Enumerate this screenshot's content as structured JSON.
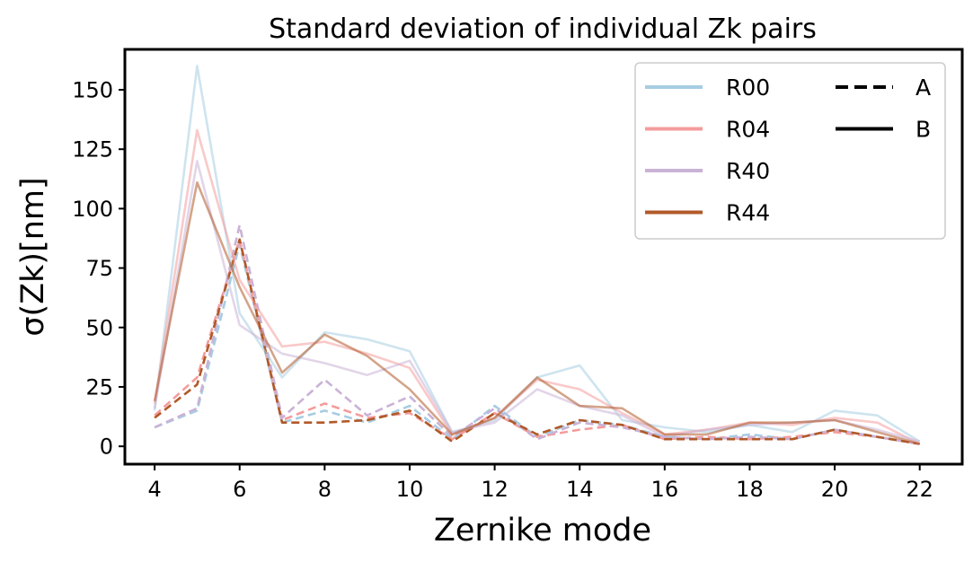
{
  "chart_data": {
    "type": "line",
    "title": "Standard deviation of individual Zk pairs",
    "xlabel": "Zernike mode",
    "ylabel": "σ(Zk)[nm]",
    "xlim": [
      3.3,
      23.0
    ],
    "ylim": [
      -7.5,
      167
    ],
    "xticks": [
      4,
      6,
      8,
      10,
      12,
      14,
      16,
      18,
      20,
      22
    ],
    "yticks": [
      0,
      25,
      50,
      75,
      100,
      125,
      150
    ],
    "grid": false,
    "legend_position": "top-right",
    "x": [
      4,
      5,
      6,
      7,
      8,
      9,
      10,
      11,
      12,
      13,
      14,
      15,
      16,
      17,
      18,
      19,
      20,
      21,
      22
    ],
    "series": [
      {
        "name": "R00",
        "color": "#a6cde2",
        "variant": "A",
        "linestyle": "dashed",
        "values": [
          8,
          15,
          85,
          10,
          15,
          10,
          17,
          3,
          17,
          4,
          11,
          9,
          4,
          3,
          5,
          3,
          7,
          4,
          1
        ]
      },
      {
        "name": "R04",
        "color": "#f49c9c",
        "variant": "A",
        "linestyle": "dashed",
        "values": [
          13,
          29,
          87,
          11,
          18,
          12,
          14,
          3,
          14,
          4,
          7,
          9,
          3,
          4,
          3,
          4,
          6,
          4,
          1
        ]
      },
      {
        "name": "R40",
        "color": "#cab2d6",
        "variant": "A",
        "linestyle": "dashed",
        "values": [
          8,
          16,
          93,
          12,
          28,
          13,
          21,
          4,
          16,
          3,
          10,
          8,
          4,
          3,
          4,
          3,
          7,
          4,
          1
        ]
      },
      {
        "name": "R44",
        "color": "#b15928",
        "variant": "A",
        "linestyle": "dashed",
        "values": [
          12,
          26,
          87,
          10,
          10,
          11,
          15,
          2,
          14,
          5,
          11,
          9,
          3,
          3,
          3,
          3,
          7,
          4,
          1
        ]
      },
      {
        "name": "R00",
        "color": "#a6cde2",
        "variant": "B",
        "linestyle": "solid",
        "values": [
          15,
          160,
          56,
          29,
          48,
          45,
          40,
          6,
          11,
          29,
          34,
          11,
          8,
          6,
          9,
          6,
          15,
          13,
          2
        ]
      },
      {
        "name": "R04",
        "color": "#f49c9c",
        "variant": "B",
        "linestyle": "solid",
        "values": [
          18,
          133,
          70,
          42,
          44,
          39,
          33,
          5,
          12,
          28,
          24,
          14,
          5,
          7,
          10,
          9,
          12,
          10,
          1
        ]
      },
      {
        "name": "R40",
        "color": "#cab2d6",
        "variant": "B",
        "linestyle": "solid",
        "values": [
          16,
          120,
          51,
          39,
          35,
          30,
          36,
          6,
          10,
          24,
          17,
          13,
          4,
          7,
          9,
          10,
          11,
          7,
          2
        ]
      },
      {
        "name": "R44",
        "color": "#b15928",
        "variant": "B",
        "linestyle": "solid",
        "values": [
          19,
          111,
          67,
          31,
          47,
          38,
          24,
          5,
          12,
          29,
          17,
          16,
          5,
          5,
          10,
          10,
          11,
          6,
          1
        ]
      }
    ],
    "legend": {
      "colors": [
        {
          "label": "R00",
          "color": "#a6cde2"
        },
        {
          "label": "R04",
          "color": "#f49c9c"
        },
        {
          "label": "R40",
          "color": "#cab2d6"
        },
        {
          "label": "R44",
          "color": "#b15928"
        }
      ],
      "styles": [
        {
          "label": "A",
          "linestyle": "dashed"
        },
        {
          "label": "B",
          "linestyle": "solid"
        }
      ]
    }
  }
}
